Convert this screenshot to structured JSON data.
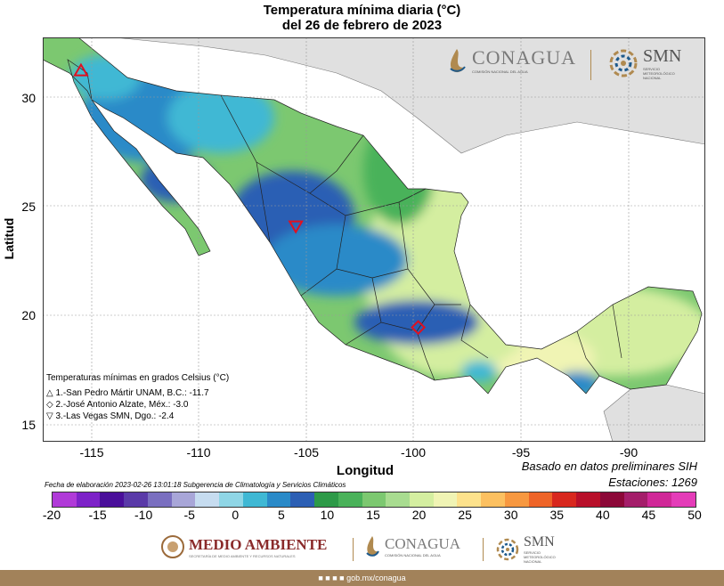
{
  "title_line1": "Temperatura mínima diaria (°C)",
  "title_line2": "del 26 de febrero de 2023",
  "axes": {
    "ylabel": "Latitud",
    "xlabel": "Longitud",
    "yticks": [
      "30",
      "25",
      "20",
      "15"
    ],
    "xticks": [
      "-115",
      "-110",
      "-105",
      "-100",
      "-95",
      "-90"
    ]
  },
  "logos": {
    "conagua_top": "CONAGUA",
    "conagua_top_sub": "COMISIÓN NACIONAL DEL AGUA",
    "smn_top": "SMN",
    "smn_top_sub": "SERVICIO METEOROLÓGICO NACIONAL",
    "medio_ambiente": "MEDIO AMBIENTE",
    "medio_ambiente_sub": "SECRETARÍA DE MEDIO AMBIENTE Y RECURSOS NATURALES",
    "conagua_bottom": "CONAGUA",
    "conagua_bottom_sub": "COMISIÓN NACIONAL DEL AGUA",
    "smn_bottom": "SMN",
    "smn_bottom_sub": "SERVICIO METEOROLÓGICO NACIONAL"
  },
  "legend": {
    "title": "Temperaturas mínimas en grados Celsius (°C)",
    "items": [
      {
        "symbol": "△",
        "text": "1.-San Pedro Mártir UNAM, B.C.: -11.7"
      },
      {
        "symbol": "◇",
        "text": "2.-José Antonio Alzate, Méx.: -3.0"
      },
      {
        "symbol": "▽",
        "text": "3.-Las Vegas SMN, Dgo.: -2.4"
      }
    ]
  },
  "notes": {
    "basado": "Basado en datos preliminares SIH",
    "estaciones": "Estaciones:  1269",
    "fecha": "Fecha de elaboración 2023-02-26 13:01:18 Subgerencia de Climatología y Servicios Climáticos"
  },
  "colorbar": {
    "labels": [
      "-20",
      "-15",
      "-10",
      "-5",
      "0",
      "5",
      "10",
      "15",
      "20",
      "25",
      "30",
      "35",
      "40",
      "45",
      "50"
    ],
    "colors": [
      "#b03ad8",
      "#7d22c8",
      "#4a0f9a",
      "#5a3aa8",
      "#7a6fc0",
      "#a8a6d8",
      "#c6dcf0",
      "#8fd6e6",
      "#3fb8d4",
      "#2a8ac8",
      "#2c5fb4",
      "#2d9a48",
      "#4ab25a",
      "#7cc870",
      "#a8dc90",
      "#d4eea0",
      "#f0f4b4",
      "#fde28c",
      "#fcc060",
      "#f79840",
      "#ee6428",
      "#d8281e",
      "#b8102a",
      "#8c0838",
      "#a41e6a",
      "#d02898",
      "#e43cb8"
    ]
  },
  "footer": "gob.mx/conagua",
  "markers": [
    {
      "id": "1",
      "lon": -115.5,
      "lat": 31.2,
      "shape": "triangle-up"
    },
    {
      "id": "2",
      "lon": -99.8,
      "lat": 19.45,
      "shape": "diamond"
    },
    {
      "id": "3",
      "lon": -105.5,
      "lat": 24.1,
      "shape": "triangle-down"
    }
  ]
}
